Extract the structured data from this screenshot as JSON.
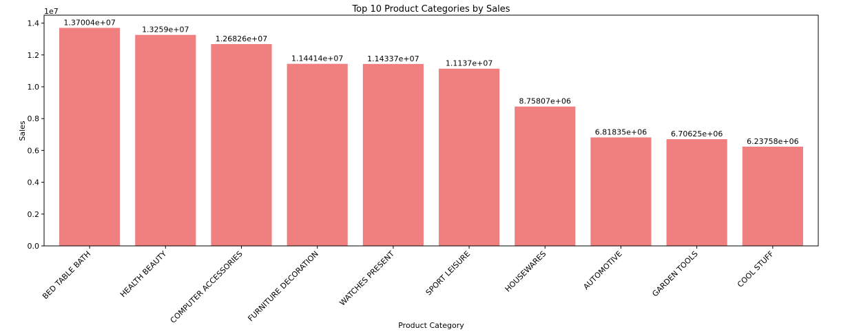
{
  "chart_data": {
    "type": "bar",
    "title": "Top 10 Product Categories by Sales",
    "xlabel": "Product Category",
    "ylabel": "Sales",
    "y_scale_offset_label": "1e7",
    "ylim": [
      0,
      14500000
    ],
    "yticks": [
      0,
      2000000,
      4000000,
      6000000,
      8000000,
      10000000,
      12000000,
      14000000
    ],
    "ytick_labels": [
      "0.0",
      "0.2",
      "0.4",
      "0.6",
      "0.8",
      "1.0",
      "1.2",
      "1.4"
    ],
    "bar_color": "#f08080",
    "grid": false,
    "legend": "none",
    "categories": [
      "BED TABLE BATH",
      "HEALTH BEAUTY",
      "COMPUTER ACCESSORIES",
      "FURNITURE DECORATION",
      "WATCHES PRESENT",
      "SPORT LEISURE",
      "HOUSEWARES",
      "AUTOMOTIVE",
      "GARDEN TOOLS",
      "COOL STUFF"
    ],
    "values": [
      13700400,
      13259000,
      12682600,
      11441400,
      11433700,
      11137000,
      8758070,
      6818350,
      6706250,
      6237580
    ],
    "data_labels": [
      "1.37004e+07",
      "1.3259e+07",
      "1.26826e+07",
      "1.14414e+07",
      "1.14337e+07",
      "1.1137e+07",
      "8.75807e+06",
      "6.81835e+06",
      "6.70625e+06",
      "6.23758e+06"
    ]
  }
}
